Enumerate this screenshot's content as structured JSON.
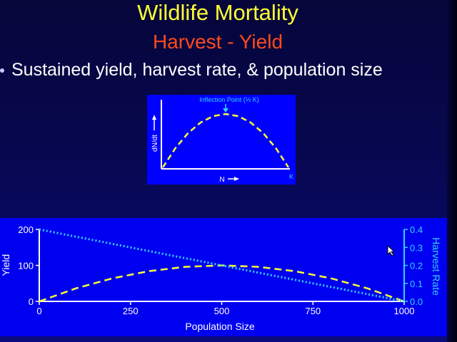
{
  "slide": {
    "title": "Wildlife Mortality",
    "subtitle": "Harvest - Yield",
    "bullet": "Sustained yield, harvest rate, & population size"
  },
  "colors": {
    "title": "#ffff33",
    "subtitle": "#ff4a1a",
    "background": "#0a0a7a",
    "curve": "#ffff33",
    "harvest_line": "#33d0ff"
  },
  "chart_data": [
    {
      "type": "line",
      "title": "Inflection Point (½ K)",
      "xlabel": "N",
      "ylabel": "dN/dt",
      "x_end_label": "K",
      "series": [
        {
          "x": [
            0,
            0.1,
            0.2,
            0.3,
            0.4,
            0.5,
            0.6,
            0.7,
            0.8,
            0.9,
            1.0
          ],
          "y": [
            0,
            0.36,
            0.64,
            0.84,
            0.96,
            1.0,
            0.96,
            0.84,
            0.64,
            0.36,
            0
          ]
        }
      ]
    },
    {
      "type": "line",
      "xlabel": "Population Size",
      "ylabel": "Yield",
      "y2label": "Harvest Rate",
      "xlim": [
        0,
        1000
      ],
      "ylim": [
        0,
        200
      ],
      "y2lim": [
        0,
        0.4
      ],
      "xticks": [
        "0",
        "250",
        "500",
        "750",
        "1000"
      ],
      "yticks": [
        "0",
        "100",
        "200"
      ],
      "y2ticks": [
        "0.0",
        "0.1",
        "0.2",
        "0.3",
        "0.4"
      ],
      "series": [
        {
          "axis": "left",
          "x": [
            0,
            100,
            200,
            300,
            400,
            500,
            600,
            700,
            800,
            900,
            1000
          ],
          "y": [
            0,
            36,
            64,
            84,
            96,
            100,
            96,
            84,
            64,
            36,
            0
          ]
        },
        {
          "axis": "right",
          "x": [
            0,
            1000
          ],
          "y": [
            0.4,
            0.0
          ]
        }
      ]
    }
  ]
}
